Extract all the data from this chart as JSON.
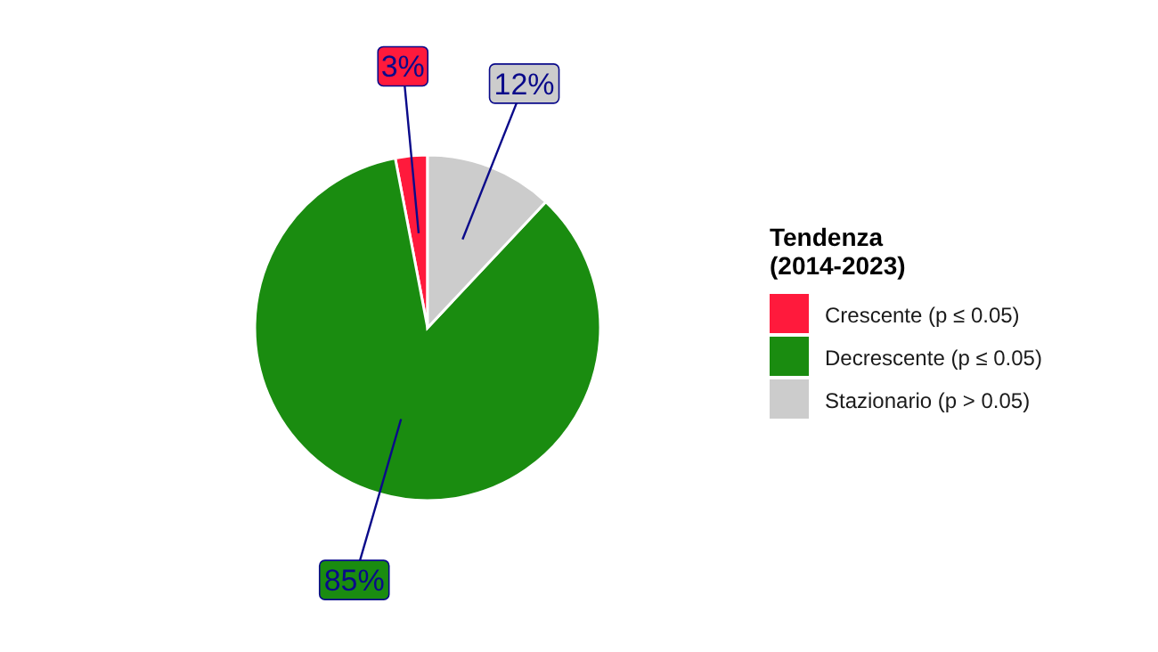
{
  "chart_data": {
    "type": "pie",
    "legend_title": "Tendenza\n(2014-2023)",
    "categories": [
      "Crescente (p ≤ 0.05)",
      "Decrescente (p ≤ 0.05)",
      "Stazionario (p > 0.05)"
    ],
    "values": [
      3,
      85,
      12
    ],
    "colors": [
      "#ff1a3c",
      "#1a8c10",
      "#cccccc"
    ],
    "value_labels": [
      "3%",
      "85%",
      "12%"
    ],
    "legend": "right"
  }
}
